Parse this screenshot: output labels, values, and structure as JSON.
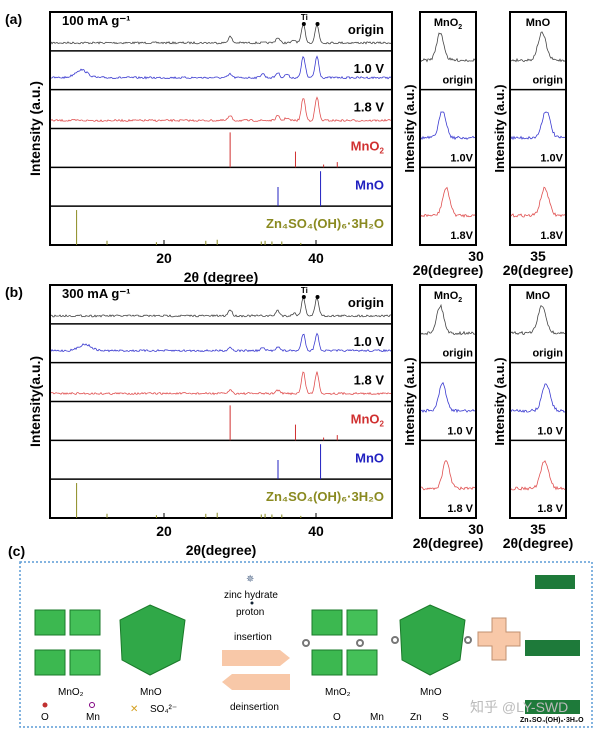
{
  "colors": {
    "origin": "#444444",
    "v10": "#3a3ad0",
    "v18": "#e05050",
    "mno2": "#d03030",
    "mno": "#2020c0",
    "zn": "#8a8a20",
    "frame": "#5b9bd5"
  },
  "chart_data": [
    {
      "type": "line",
      "panel": "(a)",
      "title": "100 mA g⁻¹",
      "ylabel": "Intensity (a.u.)",
      "xlabel": "2θ (degree)",
      "xlim": [
        5,
        50
      ],
      "xticks": [
        20,
        40
      ],
      "annotation": "Ti",
      "series": [
        {
          "name": "origin",
          "peaks": [
            [
              28.7,
              0.35
            ],
            [
              35,
              0.3
            ],
            [
              37.2,
              0.15
            ],
            [
              38.4,
              1
            ],
            [
              40.2,
              1
            ]
          ]
        },
        {
          "name": "1.0 V",
          "peaks": [
            [
              9,
              0.55
            ],
            [
              28.7,
              0.25
            ],
            [
              33,
              0.3
            ],
            [
              35,
              0.35
            ],
            [
              36.2,
              0.25
            ],
            [
              38.4,
              1.5
            ],
            [
              40.2,
              1.5
            ]
          ]
        },
        {
          "name": "1.8 V",
          "peaks": [
            [
              28.7,
              0.25
            ],
            [
              35,
              0.25
            ],
            [
              36.2,
              0.15
            ],
            [
              38.4,
              1.3
            ],
            [
              40.2,
              1.3
            ]
          ]
        }
      ],
      "references": [
        {
          "name": "MnO2",
          "label": "MnO",
          "sub": "2",
          "lines": [
            [
              28.7,
              1
            ],
            [
              37.3,
              0.45
            ],
            [
              41,
              0.08
            ],
            [
              42.8,
              0.15
            ]
          ]
        },
        {
          "name": "MnO",
          "label": "MnO",
          "sub": "",
          "lines": [
            [
              35,
              0.55
            ],
            [
              40.6,
              1
            ]
          ]
        },
        {
          "name": "Zn4SO4(OH)6·3H2O",
          "lines": [
            [
              8.5,
              1
            ],
            [
              12.5,
              0.12
            ],
            [
              19,
              0.08
            ],
            [
              25.5,
              0.12
            ],
            [
              27,
              0.15
            ],
            [
              32.8,
              0.1
            ],
            [
              33.3,
              0.12
            ],
            [
              34.2,
              0.1
            ],
            [
              35.5,
              0.1
            ],
            [
              38,
              0.06
            ]
          ]
        }
      ]
    },
    {
      "type": "line",
      "panel": "(a) MnO2 detail",
      "title": "MnO2",
      "xlabel": "2θ(degree)",
      "ylabel": "Intensity (a.u.)",
      "xlim": [
        25.5,
        30
      ],
      "xticks": [
        30
      ],
      "series": [
        {
          "name": "origin",
          "peak": 27.1
        },
        {
          "name": "1.0V",
          "peak": 27.3
        },
        {
          "name": "1.8V",
          "peak": 27.6
        }
      ]
    },
    {
      "type": "line",
      "panel": "(a) MnO detail",
      "title": "MnO",
      "xlabel": "2θ(degree)",
      "ylabel": "Intensity (a.u.)",
      "xlim": [
        33,
        37
      ],
      "xticks": [
        35
      ],
      "series": [
        {
          "name": "origin",
          "peak": 35.3
        },
        {
          "name": "1.0V",
          "peak": 35.6
        },
        {
          "name": "1.8V",
          "peak": 35.5
        }
      ]
    },
    {
      "type": "line",
      "panel": "(b)",
      "title": "300 mA g⁻¹",
      "ylabel": "Intensity(a.u.)",
      "xlabel": "2θ(degree)",
      "xlim": [
        5,
        50
      ],
      "xticks": [
        20,
        40
      ],
      "annotation": "Ti",
      "series": [
        {
          "name": "origin",
          "peaks": [
            [
              28.7,
              0.35
            ],
            [
              35,
              0.3
            ],
            [
              37.2,
              0.15
            ],
            [
              38.4,
              1
            ],
            [
              40.2,
              1
            ]
          ]
        },
        {
          "name": "1.0 V",
          "peaks": [
            [
              9.5,
              0.45
            ],
            [
              28.7,
              0.25
            ],
            [
              33,
              0.2
            ],
            [
              35,
              0.3
            ],
            [
              38.4,
              1.2
            ],
            [
              40.2,
              1.2
            ]
          ]
        },
        {
          "name": "1.8 V",
          "peaks": [
            [
              28.7,
              0.2
            ],
            [
              35,
              0.2
            ],
            [
              38.4,
              1.2
            ],
            [
              40.2,
              1.2
            ]
          ]
        }
      ]
    },
    {
      "type": "line",
      "panel": "(b) MnO2 detail",
      "title": "MnO2",
      "xlabel": "2θ(degree)",
      "xlim": [
        25.5,
        30
      ],
      "xticks": [
        30
      ],
      "series": [
        {
          "name": "origin",
          "peak": 27.1
        },
        {
          "name": "1.0 V",
          "peak": 27.3
        },
        {
          "name": "1.8 V",
          "peak": 27.6
        }
      ]
    },
    {
      "type": "line",
      "panel": "(b) MnO detail",
      "title": "MnO",
      "xlabel": "2θ(degree)",
      "xlim": [
        33,
        37
      ],
      "xticks": [
        35
      ],
      "series": [
        {
          "name": "origin",
          "peak": 35.3
        },
        {
          "name": "1.0 V",
          "peak": 35.6
        },
        {
          "name": "1.8 V",
          "peak": 35.5
        }
      ]
    }
  ],
  "labels": {
    "a": "(a)",
    "b": "(b)",
    "c": "(c)",
    "ti": "Ti",
    "mnO2": "MnO",
    "sub2": "2",
    "zn": "Zn₄SO₄(OH)₆·3H₂O",
    "mno": "MnO",
    "tick20": "20",
    "tick40": "40",
    "tick30": "30",
    "tick35": "35",
    "deg1": "2θ (degree)",
    "deg2": "2θ(degree)",
    "ya": "Intensity (a.u.)",
    "yb": "Intensity(a.u.)",
    "a_title": "100 mA g⁻¹",
    "b_title": "300 mA g⁻¹",
    "origin": "origin",
    "v10": "1.0 V",
    "v18": "1.8 V",
    "v10s": "1.0V",
    "v18s": "1.8V"
  },
  "diagram": {
    "zinc_hydrate": "zinc hydrate",
    "proton": "proton",
    "insertion": "insertion",
    "deinsertion": "deinsertion",
    "mno2": "MnO₂",
    "mno": "MnO",
    "o": "O",
    "mn": "Mn",
    "so4": "SO₄²⁻",
    "zn": "Zn",
    "s": "S",
    "product": "Zn₄SO₄(OH)₆·3H₂O",
    "watermark": "知乎 @LY-SWD"
  }
}
